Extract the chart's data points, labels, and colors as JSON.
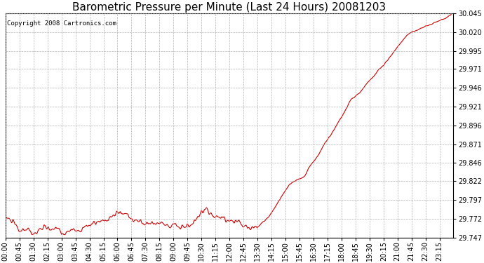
{
  "title": "Barometric Pressure per Minute (Last 24 Hours) 20081203",
  "copyright_text": "Copyright 2008 Cartronics.com",
  "line_color": "#cc0000",
  "background_color": "#ffffff",
  "plot_bg_color": "#ffffff",
  "grid_color": "#aaaaaa",
  "ylim": [
    29.747,
    30.045
  ],
  "yticks": [
    29.747,
    29.772,
    29.797,
    29.822,
    29.846,
    29.871,
    29.896,
    29.921,
    29.946,
    29.971,
    29.995,
    30.02,
    30.045
  ],
  "xtick_labels": [
    "00:00",
    "00:45",
    "01:30",
    "02:15",
    "03:00",
    "03:45",
    "04:30",
    "05:15",
    "06:00",
    "06:45",
    "07:30",
    "08:15",
    "09:00",
    "09:45",
    "10:30",
    "11:15",
    "12:00",
    "12:45",
    "13:30",
    "14:15",
    "15:00",
    "15:45",
    "16:30",
    "17:15",
    "18:00",
    "18:45",
    "19:30",
    "20:15",
    "21:00",
    "21:45",
    "22:30",
    "23:15"
  ],
  "title_fontsize": 11,
  "tick_fontsize": 7,
  "copyright_fontsize": 6.5
}
